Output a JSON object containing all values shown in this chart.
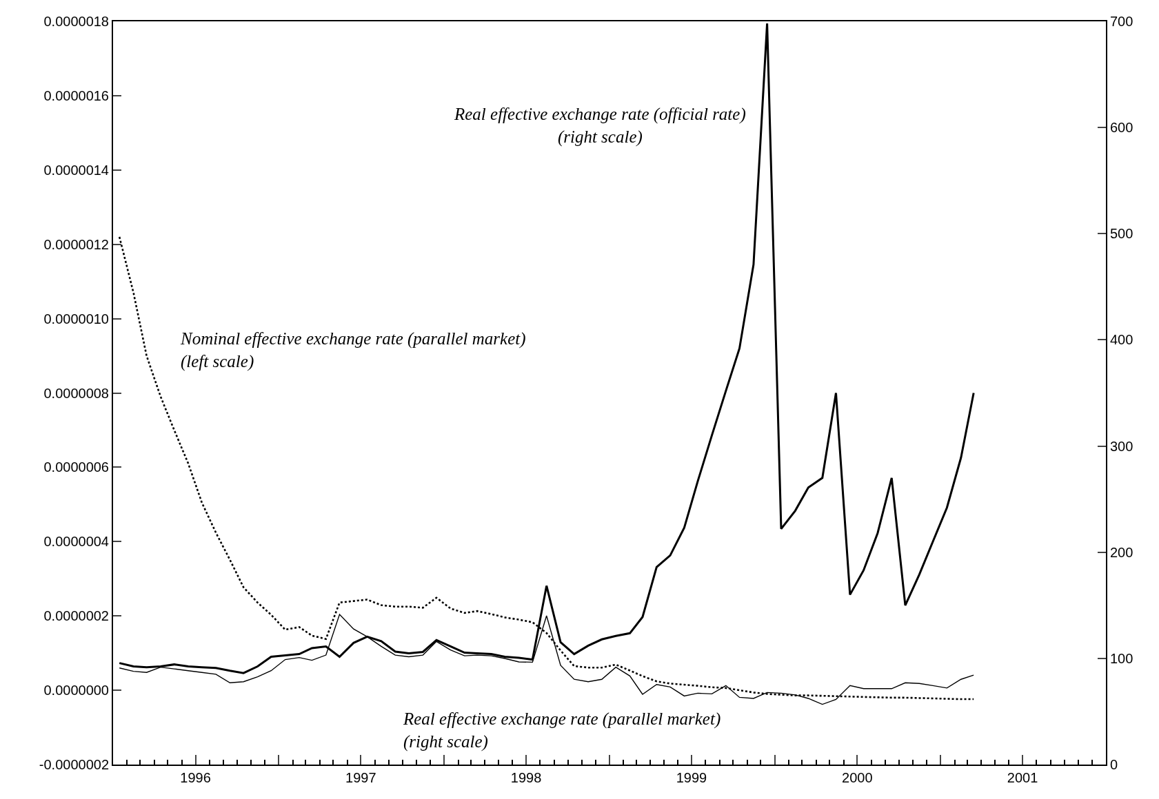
{
  "chart_data": {
    "type": "line",
    "x": [
      "1996-01-15",
      "1996-02-15",
      "1996-03-15",
      "1996-04-15",
      "1996-05-15",
      "1996-06-15",
      "1996-07-15",
      "1996-08-15",
      "1996-09-15",
      "1996-10-15",
      "1996-11-15",
      "1996-12-15",
      "1997-01-15",
      "1997-02-15",
      "1997-03-15",
      "1997-04-15",
      "1997-05-15",
      "1997-06-15",
      "1997-07-15",
      "1997-08-15",
      "1997-09-15",
      "1997-10-15",
      "1997-11-15",
      "1997-12-15",
      "1998-01-15",
      "1998-02-15",
      "1998-03-15",
      "1998-04-15",
      "1998-05-15",
      "1998-06-15",
      "1998-07-15",
      "1998-08-15",
      "1998-09-15",
      "1998-10-15",
      "1998-11-15",
      "1998-12-15",
      "1999-01-15",
      "1999-02-15",
      "1999-03-15",
      "1999-04-15",
      "1999-05-15",
      "1999-06-15",
      "1999-07-15",
      "1999-08-15",
      "1999-09-15",
      "1999-10-15",
      "1999-11-15",
      "1999-12-15",
      "2000-01-15",
      "2000-02-15",
      "2000-03-15",
      "2000-04-15",
      "2000-05-15",
      "2000-06-15",
      "2000-07-15",
      "2000-08-15",
      "2000-09-15",
      "2000-10-15",
      "2000-11-15",
      "2000-12-15",
      "2001-01-15",
      "2001-02-15",
      "2001-03-15"
    ],
    "series": [
      {
        "name": "Real effective exchange rate (official rate)\n(right scale)",
        "color": "#000000",
        "axis": "y2",
        "line_style": "solid",
        "values": [
          95.6,
          92.4,
          91.7,
          92.5,
          94.3,
          92.4,
          91.7,
          91.0,
          88.4,
          86.2,
          92.4,
          101.5,
          102.8,
          104.1,
          109.7,
          111.3,
          101.5,
          114.6,
          120.4,
          116.2,
          106.4,
          104.8,
          106.1,
          117.2,
          111.3,
          105.4,
          104.8,
          104.1,
          101.5,
          100.5,
          98.9,
          168.4,
          115.2,
          104.1,
          112,
          117.9,
          121.1,
          123.7,
          139,
          186,
          197,
          223,
          267,
          310,
          352,
          392,
          471,
          698,
          222,
          239,
          261,
          270,
          350,
          160,
          183,
          218,
          270,
          150,
          179,
          210,
          242,
          289,
          350
        ]
      },
      {
        "name": "Nominal effective exchange rate (parallel market)\n(left scale)",
        "color": "#000000",
        "axis": "y",
        "line_style": "dotted",
        "values": [
          1.22e-06,
          1.07e-06,
          9e-07,
          7.9e-07,
          7e-07,
          6.1e-07,
          5.05e-07,
          4.24e-07,
          3.51e-07,
          2.77e-07,
          2.36e-07,
          2.03e-07,
          1.63e-07,
          1.7e-07,
          1.47e-07,
          1.38e-07,
          2.36e-07,
          2.4e-07,
          2.44e-07,
          2.29e-07,
          2.25e-07,
          2.25e-07,
          2.22e-07,
          2.49e-07,
          2.2e-07,
          2.08e-07,
          2.13e-07,
          2.05e-07,
          1.96e-07,
          1.9e-07,
          1.83e-07,
          1.54e-07,
          1.07e-07,
          6.5e-08,
          6.1e-08,
          6.1e-08,
          6.9e-08,
          5.3e-08,
          3.8e-08,
          2.4e-08,
          1.8e-08,
          1.5e-08,
          1.2e-08,
          8e-09,
          6e-09,
          0,
          -6e-09,
          -1e-08,
          -1.2e-08,
          -1.4e-08,
          -1.4e-08,
          -1.5e-08,
          -1.6e-08,
          -1.7e-08,
          -1.8e-08,
          -1.9e-08,
          -2e-08,
          -2e-08,
          -2.1e-08,
          -2.2e-08,
          -2.3e-08,
          -2.4e-08,
          -2.4e-08
        ]
      },
      {
        "name": "Real effective exchange rate (parallel market)\n(right scale)",
        "color": "#000000",
        "axis": "y2",
        "line_style": "solid",
        "values": [
          91.0,
          87.8,
          86.8,
          91.7,
          90.1,
          88.4,
          86.8,
          85.1,
          77.0,
          78.0,
          82.6,
          88.4,
          98.9,
          100.8,
          98.2,
          103.1,
          141.4,
          127.7,
          120.4,
          111.3,
          103.1,
          101.5,
          103.1,
          115.9,
          108,
          102.4,
          103.1,
          102.4,
          99.9,
          96.7,
          96.4,
          140.1,
          93.5,
          80.3,
          78.0,
          80.3,
          91.7,
          83.5,
          66.2,
          75.4,
          73.1,
          64.6,
          67.2,
          66.6,
          74.4,
          63.3,
          62.3,
          67.9,
          67.2,
          65.6,
          62.3,
          56.7,
          61.3,
          74.4,
          71.5,
          71.5,
          71.5,
          77,
          76.4,
          74.4,
          72.1,
          80.3,
          84.3
        ]
      }
    ],
    "xlim": [
      "1996-01-01",
      "2002-01-01"
    ],
    "xticks": [
      {
        "value": "1996-01-01",
        "label": null
      },
      {
        "value": "1996-07-01",
        "label": "1996"
      },
      {
        "value": "1997-01-01",
        "label": null
      },
      {
        "value": "1997-07-01",
        "label": "1997"
      },
      {
        "value": "1998-01-01",
        "label": null
      },
      {
        "value": "1998-07-01",
        "label": "1998"
      },
      {
        "value": "1999-01-01",
        "label": null
      },
      {
        "value": "1999-07-01",
        "label": "1999"
      },
      {
        "value": "2000-01-01",
        "label": null
      },
      {
        "value": "2000-07-01",
        "label": "2000"
      },
      {
        "value": "2001-01-01",
        "label": null
      },
      {
        "value": "2001-07-01",
        "label": "2001"
      },
      {
        "value": "2002-01-01",
        "label": null
      }
    ],
    "ylim": [
      -2e-07,
      1.8e-06
    ],
    "yticks": [
      {
        "value": -2e-07,
        "label": "-0.0000002"
      },
      {
        "value": 0,
        "label": "0.0000000"
      },
      {
        "value": 2e-07,
        "label": "0.0000002"
      },
      {
        "value": 4e-07,
        "label": "0.0000004"
      },
      {
        "value": 6e-07,
        "label": "0.0000006"
      },
      {
        "value": 8e-07,
        "label": "0.0000008"
      },
      {
        "value": 1e-06,
        "label": "0.0000010"
      },
      {
        "value": 1.2e-06,
        "label": "0.0000012"
      },
      {
        "value": 1.4e-06,
        "label": "0.0000014"
      },
      {
        "value": 1.6e-06,
        "label": "0.0000016"
      },
      {
        "value": 1.8e-06,
        "label": "0.0000018"
      }
    ],
    "y2lim": [
      0,
      700
    ],
    "y2ticks": [
      0,
      100,
      200,
      300,
      400,
      500,
      600,
      700
    ],
    "legend": false,
    "marker": "none"
  }
}
